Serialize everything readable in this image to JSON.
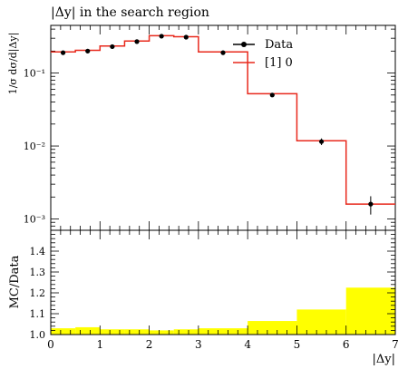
{
  "chart_data": [
    {
      "type": "line",
      "title": "|Δy| in the search region",
      "ylabel": "1/σ dσ/d|Δy|",
      "xlabel": "",
      "yscale": "log",
      "xlim": [
        0,
        7
      ],
      "ylim": [
        0.0007,
        0.45
      ],
      "y_tick_labels": [
        "10⁻³",
        "10⁻²",
        "10⁻¹"
      ],
      "legend": [
        "Data",
        "[1] 0"
      ],
      "legend_position": "top-right",
      "colors": {
        "data": "#000000",
        "mc": "#e8291c"
      },
      "x_edges": [
        0,
        0.5,
        1,
        1.5,
        2,
        2.5,
        3,
        4,
        5,
        6,
        7
      ],
      "series": [
        {
          "name": "Data",
          "x": [
            0.25,
            0.75,
            1.25,
            1.75,
            2.25,
            2.75,
            3.5,
            4.5,
            5.5,
            6.5
          ],
          "y": [
            0.19,
            0.2,
            0.23,
            0.27,
            0.32,
            0.31,
            0.19,
            0.05,
            0.0115,
            0.0016
          ],
          "err_y": [
            0.008,
            0.008,
            0.009,
            0.01,
            0.012,
            0.012,
            0.007,
            0.002,
            0.0012,
            0.00045
          ]
        },
        {
          "name": "[1] 0",
          "step_values": [
            0.195,
            0.205,
            0.235,
            0.275,
            0.325,
            0.315,
            0.195,
            0.052,
            0.0118,
            0.0016
          ]
        }
      ]
    },
    {
      "type": "area",
      "ylabel": "MC/Data",
      "xlabel": "|Δy|",
      "xlim": [
        0,
        7
      ],
      "ylim": [
        1.0,
        1.5
      ],
      "x_ticks": [
        "0",
        "1",
        "2",
        "3",
        "4",
        "5",
        "6",
        "7"
      ],
      "y_ticks": [
        "1.0",
        "1.1",
        "1.2",
        "1.3",
        "1.4"
      ],
      "colors": {
        "band": "#ffff00"
      },
      "x_edges": [
        0,
        0.5,
        1,
        1.5,
        2,
        2.5,
        3,
        4,
        5,
        6,
        7
      ],
      "band_upper": [
        1.03,
        1.035,
        1.025,
        1.025,
        1.02,
        1.025,
        1.03,
        1.065,
        1.12,
        1.225
      ]
    }
  ]
}
